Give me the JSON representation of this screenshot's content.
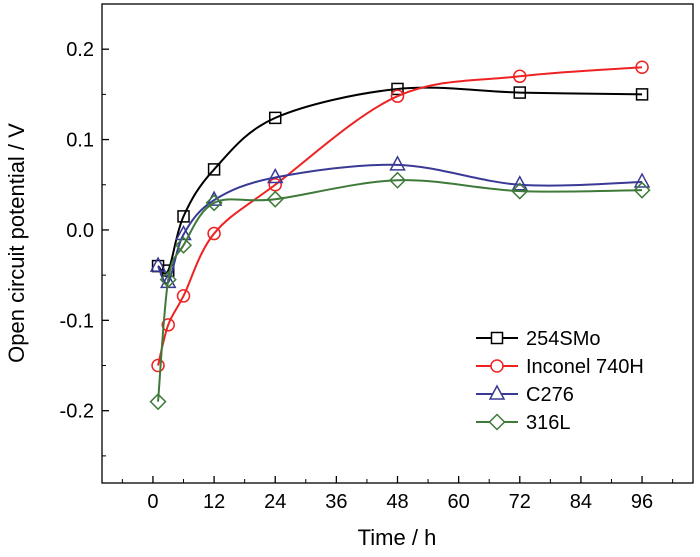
{
  "chart_data": {
    "type": "line",
    "title": "",
    "xlabel": "Time / h",
    "ylabel": "Open circuit potential / V",
    "xlim": [
      -10,
      106
    ],
    "ylim": [
      -0.28,
      0.25
    ],
    "xticks": [
      0,
      12,
      24,
      36,
      48,
      60,
      72,
      84,
      96
    ],
    "yticks": [
      -0.2,
      -0.1,
      0.0,
      0.1,
      0.2
    ],
    "ytick_labels": [
      "-0.2",
      "-0.1",
      "0.0",
      "0.1",
      "0.2"
    ],
    "grid": false,
    "legend_position": "bottom-right",
    "x": [
      1,
      3,
      6,
      12,
      24,
      48,
      72,
      96
    ],
    "series": [
      {
        "name": "254SMo",
        "color": "#000000",
        "marker": "square",
        "values": [
          -0.04,
          -0.045,
          0.015,
          0.067,
          0.124,
          0.156,
          0.152,
          0.15
        ]
      },
      {
        "name": "Inconel 740H",
        "color": "#ee2222",
        "marker": "circle",
        "values": [
          -0.15,
          -0.105,
          -0.073,
          -0.004,
          0.05,
          0.148,
          0.17,
          0.18
        ]
      },
      {
        "name": "C276",
        "color": "#3a3a96",
        "marker": "triangle",
        "values": [
          -0.04,
          -0.058,
          -0.005,
          0.033,
          0.058,
          0.072,
          0.05,
          0.053
        ]
      },
      {
        "name": "316L",
        "color": "#3f7a3a",
        "marker": "diamond",
        "values": [
          -0.19,
          -0.055,
          -0.017,
          0.03,
          0.034,
          0.055,
          0.043,
          0.044
        ]
      }
    ]
  }
}
